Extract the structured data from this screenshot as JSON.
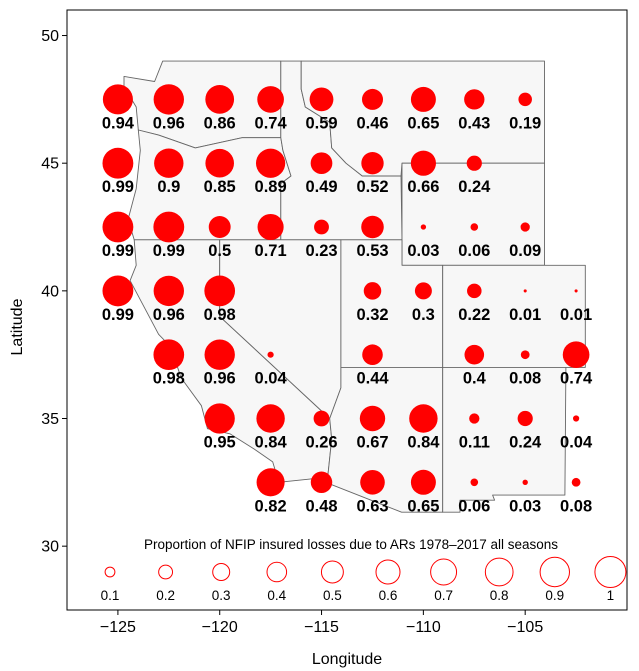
{
  "chart_data": {
    "type": "scatter",
    "subtype": "proportional-symbol map",
    "title": "",
    "xlabel": "Longitude",
    "ylabel": "Latitude",
    "xlim": [
      -127.5,
      -100.0
    ],
    "ylim": [
      27.5,
      51.0
    ],
    "x_ticks": [
      -125,
      -120,
      -115,
      -110,
      -105
    ],
    "x_tick_labels": [
      "−125",
      "−120",
      "−115",
      "−110",
      "−105"
    ],
    "y_ticks": [
      30,
      35,
      40,
      45,
      50
    ],
    "y_tick_labels": [
      "30",
      "35",
      "40",
      "45",
      "50"
    ],
    "grid": false,
    "marker_color": "#ff0000",
    "map_fill": "#f7f7f7",
    "map_stroke": "#666666",
    "points": [
      {
        "lon": -125.0,
        "lat": 47.5,
        "value": 0.94,
        "label": "0.94"
      },
      {
        "lon": -122.5,
        "lat": 47.5,
        "value": 0.96,
        "label": "0.96"
      },
      {
        "lon": -120.0,
        "lat": 47.5,
        "value": 0.86,
        "label": "0.86"
      },
      {
        "lon": -117.5,
        "lat": 47.5,
        "value": 0.74,
        "label": "0.74"
      },
      {
        "lon": -115.0,
        "lat": 47.5,
        "value": 0.59,
        "label": "0.59"
      },
      {
        "lon": -112.5,
        "lat": 47.5,
        "value": 0.46,
        "label": "0.46"
      },
      {
        "lon": -110.0,
        "lat": 47.5,
        "value": 0.65,
        "label": "0.65"
      },
      {
        "lon": -107.5,
        "lat": 47.5,
        "value": 0.43,
        "label": "0.43"
      },
      {
        "lon": -105.0,
        "lat": 47.5,
        "value": 0.19,
        "label": "0.19"
      },
      {
        "lon": -125.0,
        "lat": 45.0,
        "value": 0.99,
        "label": "0.99"
      },
      {
        "lon": -122.5,
        "lat": 45.0,
        "value": 0.9,
        "label": "0.9"
      },
      {
        "lon": -120.0,
        "lat": 45.0,
        "value": 0.85,
        "label": "0.85"
      },
      {
        "lon": -117.5,
        "lat": 45.0,
        "value": 0.89,
        "label": "0.89"
      },
      {
        "lon": -115.0,
        "lat": 45.0,
        "value": 0.49,
        "label": "0.49"
      },
      {
        "lon": -112.5,
        "lat": 45.0,
        "value": 0.52,
        "label": "0.52"
      },
      {
        "lon": -110.0,
        "lat": 45.0,
        "value": 0.66,
        "label": "0.66"
      },
      {
        "lon": -107.5,
        "lat": 45.0,
        "value": 0.24,
        "label": "0.24"
      },
      {
        "lon": -125.0,
        "lat": 42.5,
        "value": 0.99,
        "label": "0.99"
      },
      {
        "lon": -122.5,
        "lat": 42.5,
        "value": 0.99,
        "label": "0.99"
      },
      {
        "lon": -120.0,
        "lat": 42.5,
        "value": 0.5,
        "label": "0.5"
      },
      {
        "lon": -117.5,
        "lat": 42.5,
        "value": 0.71,
        "label": "0.71"
      },
      {
        "lon": -115.0,
        "lat": 42.5,
        "value": 0.23,
        "label": "0.23"
      },
      {
        "lon": -112.5,
        "lat": 42.5,
        "value": 0.53,
        "label": "0.53"
      },
      {
        "lon": -110.0,
        "lat": 42.5,
        "value": 0.03,
        "label": "0.03"
      },
      {
        "lon": -107.5,
        "lat": 42.5,
        "value": 0.06,
        "label": "0.06"
      },
      {
        "lon": -105.0,
        "lat": 42.5,
        "value": 0.09,
        "label": "0.09"
      },
      {
        "lon": -125.0,
        "lat": 40.0,
        "value": 0.99,
        "label": "0.99"
      },
      {
        "lon": -122.5,
        "lat": 40.0,
        "value": 0.96,
        "label": "0.96"
      },
      {
        "lon": -120.0,
        "lat": 40.0,
        "value": 0.98,
        "label": "0.98"
      },
      {
        "lon": -112.5,
        "lat": 40.0,
        "value": 0.32,
        "label": "0.32"
      },
      {
        "lon": -110.0,
        "lat": 40.0,
        "value": 0.3,
        "label": "0.3"
      },
      {
        "lon": -107.5,
        "lat": 40.0,
        "value": 0.22,
        "label": "0.22"
      },
      {
        "lon": -105.0,
        "lat": 40.0,
        "value": 0.01,
        "label": "0.01"
      },
      {
        "lon": -102.5,
        "lat": 40.0,
        "value": 0.01,
        "label": "0.01"
      },
      {
        "lon": -122.5,
        "lat": 37.5,
        "value": 0.98,
        "label": "0.98"
      },
      {
        "lon": -120.0,
        "lat": 37.5,
        "value": 0.96,
        "label": "0.96"
      },
      {
        "lon": -117.5,
        "lat": 37.5,
        "value": 0.04,
        "label": "0.04"
      },
      {
        "lon": -112.5,
        "lat": 37.5,
        "value": 0.44,
        "label": "0.44"
      },
      {
        "lon": -107.5,
        "lat": 37.5,
        "value": 0.4,
        "label": "0.4"
      },
      {
        "lon": -105.0,
        "lat": 37.5,
        "value": 0.08,
        "label": "0.08"
      },
      {
        "lon": -102.5,
        "lat": 37.5,
        "value": 0.74,
        "label": "0.74"
      },
      {
        "lon": -120.0,
        "lat": 35.0,
        "value": 0.95,
        "label": "0.95"
      },
      {
        "lon": -117.5,
        "lat": 35.0,
        "value": 0.84,
        "label": "0.84"
      },
      {
        "lon": -115.0,
        "lat": 35.0,
        "value": 0.26,
        "label": "0.26"
      },
      {
        "lon": -112.5,
        "lat": 35.0,
        "value": 0.67,
        "label": "0.67"
      },
      {
        "lon": -110.0,
        "lat": 35.0,
        "value": 0.84,
        "label": "0.84"
      },
      {
        "lon": -107.5,
        "lat": 35.0,
        "value": 0.11,
        "label": "0.11"
      },
      {
        "lon": -105.0,
        "lat": 35.0,
        "value": 0.24,
        "label": "0.24"
      },
      {
        "lon": -102.5,
        "lat": 35.0,
        "value": 0.04,
        "label": "0.04"
      },
      {
        "lon": -117.5,
        "lat": 32.5,
        "value": 0.82,
        "label": "0.82"
      },
      {
        "lon": -115.0,
        "lat": 32.5,
        "value": 0.48,
        "label": "0.48"
      },
      {
        "lon": -112.5,
        "lat": 32.5,
        "value": 0.63,
        "label": "0.63"
      },
      {
        "lon": -110.0,
        "lat": 32.5,
        "value": 0.65,
        "label": "0.65"
      },
      {
        "lon": -107.5,
        "lat": 32.5,
        "value": 0.06,
        "label": "0.06"
      },
      {
        "lon": -105.0,
        "lat": 32.5,
        "value": 0.03,
        "label": "0.03"
      },
      {
        "lon": -102.5,
        "lat": 32.5,
        "value": 0.08,
        "label": "0.08"
      }
    ],
    "legend": {
      "title": "Proportion of NFIP insured losses due to ARs 1978–2017 all seasons",
      "placement": "bottom-inside",
      "items": [
        {
          "value": 0.1,
          "label": "0.1"
        },
        {
          "value": 0.2,
          "label": "0.2"
        },
        {
          "value": 0.3,
          "label": "0.3"
        },
        {
          "value": 0.4,
          "label": "0.4"
        },
        {
          "value": 0.5,
          "label": "0.5"
        },
        {
          "value": 0.6,
          "label": "0.6"
        },
        {
          "value": 0.7,
          "label": "0.7"
        },
        {
          "value": 0.8,
          "label": "0.8"
        },
        {
          "value": 0.9,
          "label": "0.9"
        },
        {
          "value": 1.0,
          "label": "1"
        }
      ]
    }
  }
}
